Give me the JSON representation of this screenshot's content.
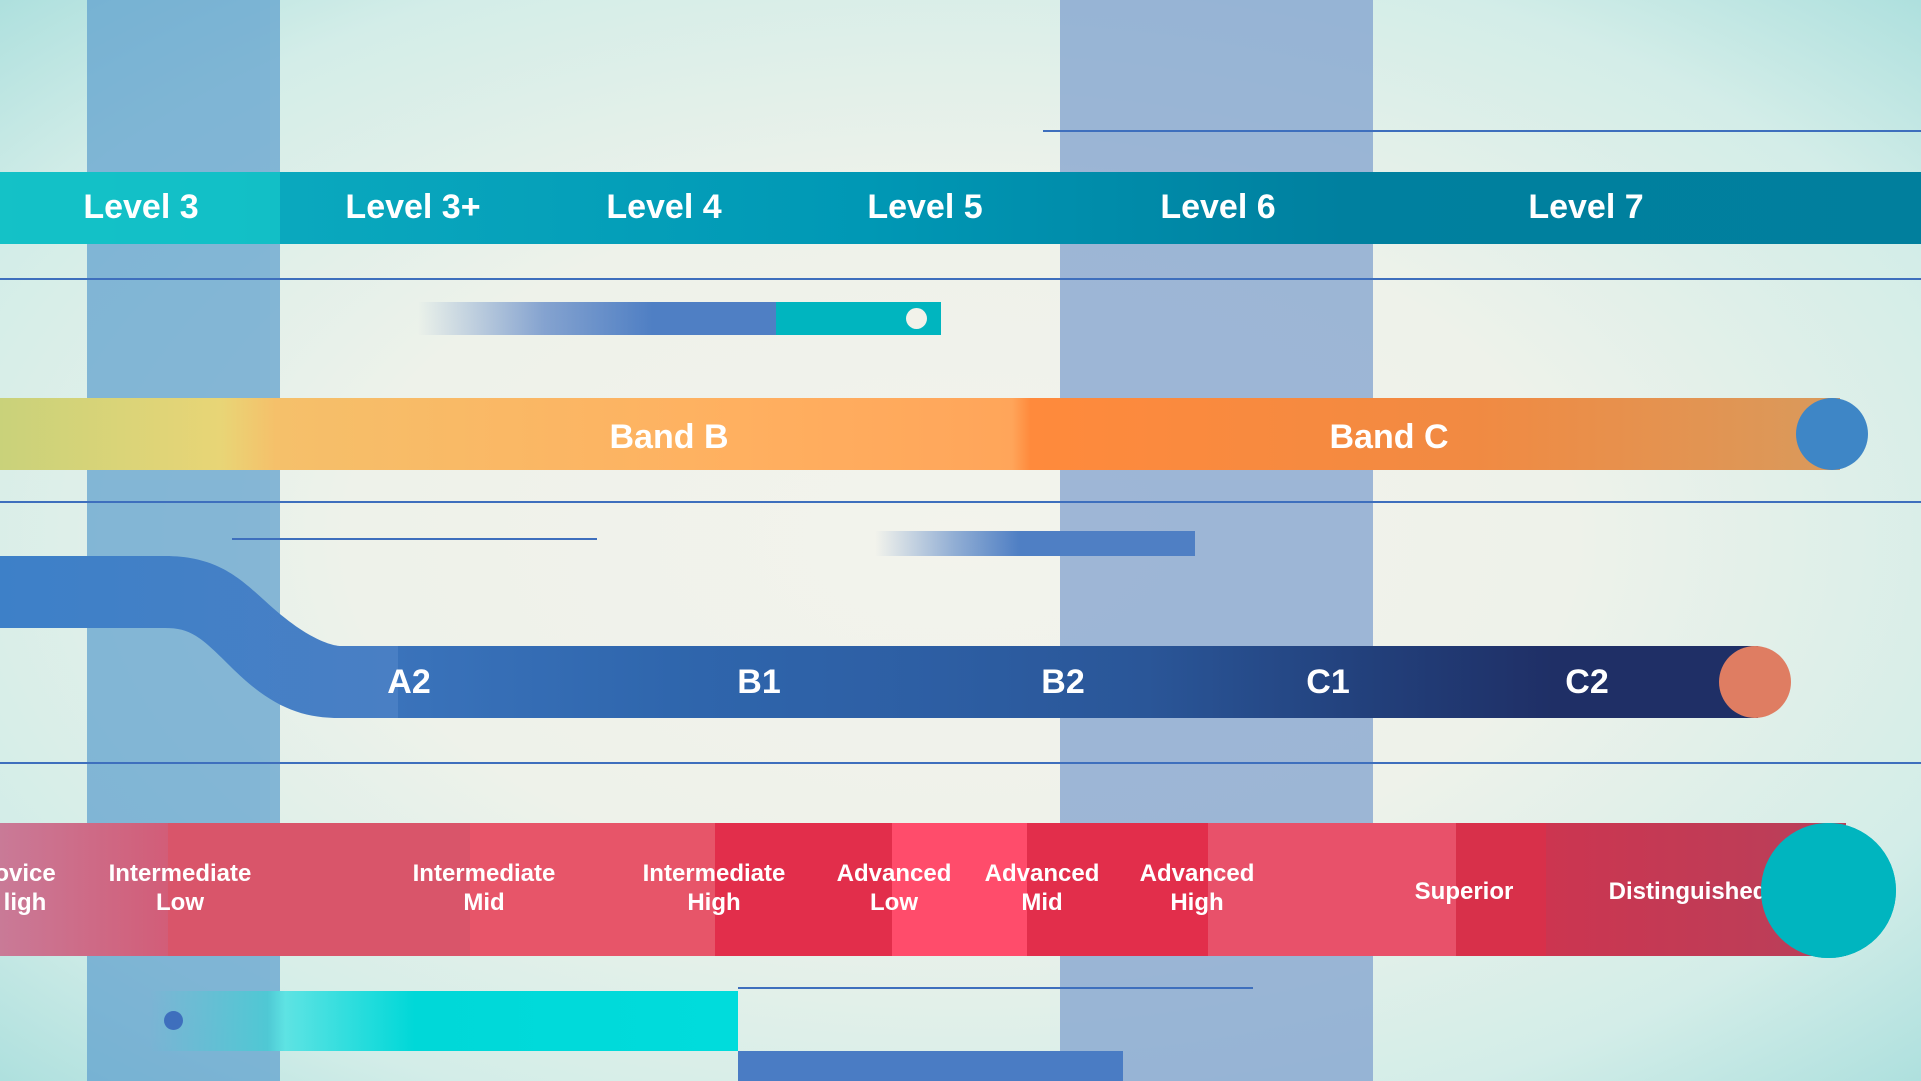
{
  "levels": [
    "Level 3",
    "Level 3+",
    "Level 4",
    "Level 5",
    "Level 6",
    "Level 7"
  ],
  "bands": [
    "Band B",
    "Band C"
  ],
  "cefr": [
    "A2",
    "B1",
    "B2",
    "C1",
    "C2"
  ],
  "ratings": [
    [
      "ovice",
      "ligh"
    ],
    [
      "Intermediate",
      "Low"
    ],
    [
      "Intermediate",
      "Mid"
    ],
    [
      "Intermediate",
      "High"
    ],
    [
      "Advanced",
      "Low"
    ],
    [
      "Advanced",
      "Mid"
    ],
    [
      "Advanced",
      "High"
    ],
    [
      "Superior"
    ],
    [
      "Distinguished"
    ]
  ],
  "colors": {
    "level_bar": "#0098b5",
    "band_b": "#ffb060",
    "band_c": "#ff8a3c",
    "cefr_bar": "#2f5fa6",
    "rating_bar": "#e4465d",
    "teal": "#00b5bf",
    "blue_dot": "#3e86c6",
    "salmon_dot": "#df7d62"
  }
}
